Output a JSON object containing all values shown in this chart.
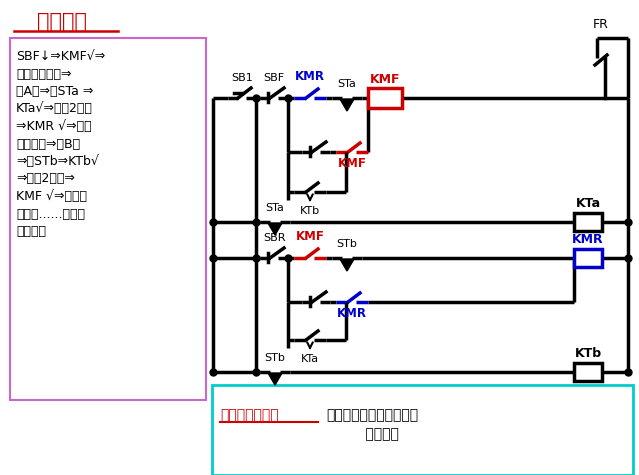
{
  "title": "动作过程",
  "title_color": "#CC0000",
  "bg_color": "#FFFFFF",
  "left_box_border": "#CC66CC",
  "bottom_text_label": "该电路的问题：",
  "bottom_text_label_color": "#CC0000",
  "bottom_text": "小车在两极端位置时，不\n         能停车。",
  "bottom_text_color": "#000000",
  "bottom_box_color": "#00CCCC",
  "fr_label": "FR",
  "kmf_label": "KMF",
  "kmr_label": "KMR",
  "kta_label": "KTa",
  "ktb_label": "KTb",
  "sta_label": "STa",
  "stb_label": "STb",
  "sbf_label": "SBF",
  "sbr_label": "SBR",
  "sb1_label": "SB1",
  "red": "#CC0000",
  "blue": "#0000CC",
  "black": "#000000",
  "left_text": "SBF↓⇒KMF√⇒\n小车正向运行⇒\n至A端⇒撞STa ⇒\nKTa√⇒延时2分钟\n⇒KMR √⇒小车\n反向运行⇒至B端\n⇒撞STb⇒KTb√\n⇒延时2分钟⇒\nKMF √⇒小车正\n向运行......如此往\n反运行。"
}
